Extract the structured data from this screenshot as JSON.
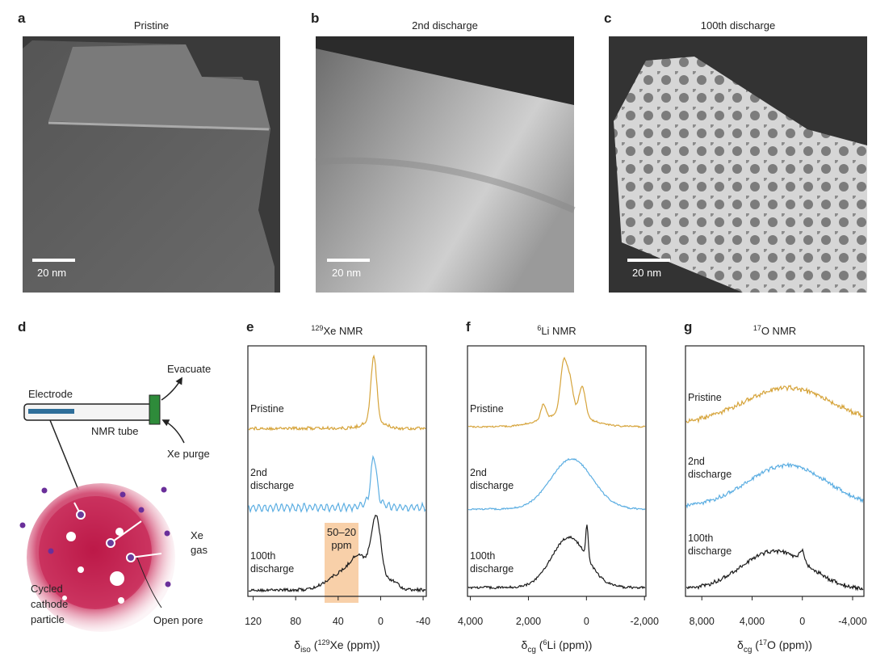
{
  "panels": {
    "a": {
      "letter": "a",
      "title": "Pristine",
      "scale": "20 nm"
    },
    "b": {
      "letter": "b",
      "title": "2nd discharge",
      "scale": "20 nm"
    },
    "c": {
      "letter": "c",
      "title": "100th discharge",
      "scale": "20 nm"
    },
    "d": {
      "letter": "d",
      "electrode": "Electrode",
      "tube": "NMR tube",
      "evacuate": "Evacuate",
      "purge": "Xe purge",
      "gas": [
        "Xe",
        "gas"
      ],
      "particle": [
        "Cycled",
        "cathode",
        "particle"
      ],
      "pore": "Open pore"
    },
    "e": {
      "letter": "e",
      "title": {
        "sup": "129",
        "text": "Xe NMR"
      },
      "traces": [
        [
          "Pristine"
        ],
        [
          "2nd",
          "discharge"
        ],
        [
          "100th",
          "discharge"
        ]
      ],
      "highlight": [
        "50–20",
        "ppm"
      ],
      "xlim": [
        125,
        -43
      ],
      "xticks": [
        120,
        80,
        40,
        0,
        -40
      ],
      "xlabel": {
        "symbol": "δ",
        "sub": "iso",
        "open": " (",
        "sup": "129",
        "rest": "Xe (ppm))"
      }
    },
    "f": {
      "letter": "f",
      "title": {
        "sup": "6",
        "text": "Li NMR"
      },
      "traces": [
        [
          "Pristine"
        ],
        [
          "2nd",
          "discharge"
        ],
        [
          "100th",
          "discharge"
        ]
      ],
      "xlim": [
        4100,
        -2050
      ],
      "xticks": [
        {
          "value": 4000,
          "label": "4,000"
        },
        {
          "value": 2000,
          "label": "2,000"
        },
        0,
        {
          "value": -2000,
          "label": "-2,000"
        }
      ],
      "xlabel": {
        "symbol": "δ",
        "sub": "cg",
        "open": " (",
        "sup": "6",
        "rest": "Li (ppm))"
      }
    },
    "g": {
      "letter": "g",
      "title": {
        "sup": "17",
        "text": "O NMR"
      },
      "traces": [
        [
          "Pristine"
        ],
        [
          "2nd",
          "discharge"
        ],
        [
          "100th",
          "discharge"
        ]
      ],
      "xlim": [
        9300,
        -4900
      ],
      "xticks": [
        {
          "value": 8000,
          "label": "8,000"
        },
        {
          "value": 4000,
          "label": "4,000"
        },
        0,
        {
          "value": -4000,
          "label": "-4,000"
        }
      ],
      "xlabel": {
        "symbol": "δ",
        "sub": "cg",
        "open": " (",
        "sup": "17",
        "rest": "O (ppm))"
      }
    }
  }
}
